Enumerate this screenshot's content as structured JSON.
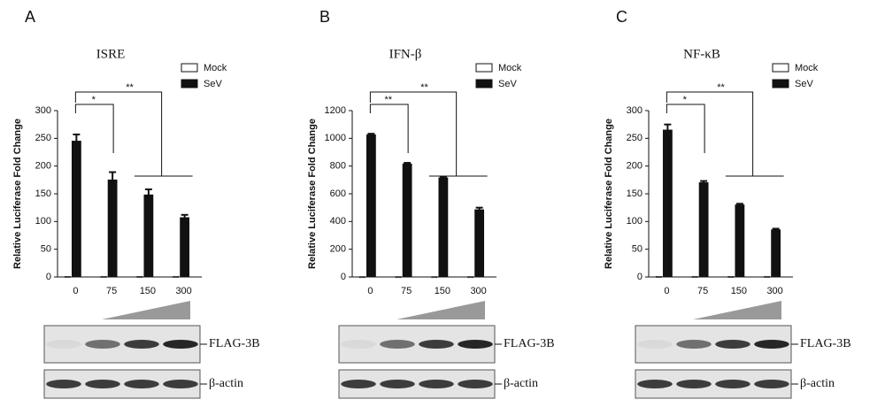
{
  "chart_data": [
    {
      "type": "bar",
      "panel": "A",
      "title": "ISRE",
      "ylabel": "Relative Luciferase Fold Change",
      "categories": [
        "0",
        "75",
        "150",
        "300"
      ],
      "series": [
        {
          "name": "Mock",
          "color": "#ffffff",
          "values": [
            1,
            1,
            1,
            1
          ]
        },
        {
          "name": "SeV",
          "color": "#111111",
          "values": [
            245,
            175,
            148,
            107
          ],
          "errors": [
            12,
            14,
            10,
            5
          ]
        }
      ],
      "ylim": [
        0,
        300
      ],
      "yticks": [
        0,
        50,
        100,
        150,
        200,
        250,
        300
      ],
      "annotations": [
        "*",
        "**"
      ],
      "blots": [
        "FLAG-3B",
        "β-actin"
      ]
    },
    {
      "type": "bar",
      "panel": "B",
      "title": "IFN-β",
      "ylabel": "Relative Luciferase Fold Change",
      "categories": [
        "0",
        "75",
        "150",
        "300"
      ],
      "series": [
        {
          "name": "Mock",
          "color": "#ffffff",
          "values": [
            2,
            2,
            2,
            2
          ]
        },
        {
          "name": "SeV",
          "color": "#111111",
          "values": [
            1025,
            815,
            715,
            485
          ],
          "errors": [
            8,
            8,
            8,
            15
          ]
        }
      ],
      "ylim": [
        0,
        1200
      ],
      "yticks": [
        0,
        200,
        400,
        600,
        800,
        1000,
        1200
      ],
      "annotations": [
        "**",
        "**"
      ],
      "blots": [
        "FLAG-3B",
        "β-actin"
      ]
    },
    {
      "type": "bar",
      "panel": "C",
      "title": "NF-κB",
      "ylabel": "Relative Luciferase Fold Change",
      "categories": [
        "0",
        "75",
        "150",
        "300"
      ],
      "series": [
        {
          "name": "Mock",
          "color": "#ffffff",
          "values": [
            1,
            1,
            1,
            1
          ]
        },
        {
          "name": "SeV",
          "color": "#111111",
          "values": [
            265,
            170,
            130,
            85
          ],
          "errors": [
            10,
            3,
            2,
            2
          ]
        }
      ],
      "ylim": [
        0,
        300
      ],
      "yticks": [
        0,
        50,
        100,
        150,
        200,
        250,
        300
      ],
      "annotations": [
        "*",
        "**"
      ],
      "blots": [
        "FLAG-3B",
        "β-actin"
      ]
    }
  ]
}
